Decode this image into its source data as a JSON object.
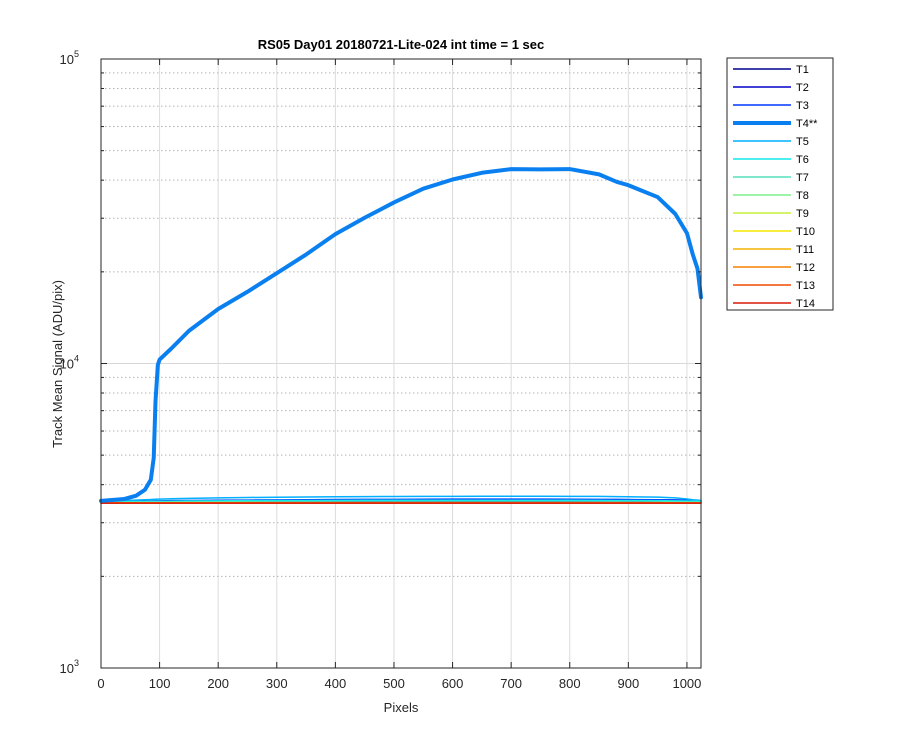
{
  "chart_data": {
    "type": "line",
    "title": "RS05 Day01 20180721-Lite-024 int time = 1 sec",
    "xlabel": "Pixels",
    "ylabel": "Track Mean Signal (ADU/pix)",
    "xlim": [
      0,
      1024
    ],
    "ylim": [
      1000,
      100000
    ],
    "yscale": "log",
    "grid": true,
    "legend_position": "outside-right",
    "x_ticks": [
      "0",
      "100",
      "200",
      "300",
      "400",
      "500",
      "600",
      "700",
      "800",
      "900",
      "1000"
    ],
    "y_ticks": [
      {
        "value": 1000,
        "base": "10",
        "exp": "3"
      },
      {
        "value": 10000,
        "base": "10",
        "exp": "4"
      },
      {
        "value": 100000,
        "base": "10",
        "exp": "5"
      }
    ],
    "x": [
      0,
      40,
      60,
      75,
      85,
      90,
      93,
      97,
      100,
      120,
      150,
      200,
      250,
      300,
      350,
      400,
      450,
      500,
      550,
      600,
      650,
      700,
      750,
      800,
      850,
      880,
      900,
      950,
      980,
      1000,
      1010,
      1018,
      1024
    ],
    "series": [
      {
        "name": "T1",
        "color": "#00008f",
        "width": 1.5,
        "values": [
          3500,
          3505,
          3510,
          3510,
          3510,
          3512,
          3512,
          3512,
          3512,
          3515,
          3515,
          3520,
          3520,
          3522,
          3522,
          3522,
          3525,
          3525,
          3525,
          3525,
          3525,
          3525,
          3525,
          3525,
          3522,
          3522,
          3520,
          3520,
          3520,
          3520,
          3518,
          3518,
          3515
        ]
      },
      {
        "name": "T2",
        "color": "#0000c8",
        "width": 1.5,
        "values": [
          3495,
          3500,
          3505,
          3505,
          3505,
          3505,
          3505,
          3505,
          3505,
          3508,
          3510,
          3512,
          3512,
          3515,
          3515,
          3515,
          3515,
          3515,
          3515,
          3515,
          3515,
          3515,
          3515,
          3515,
          3515,
          3512,
          3512,
          3510,
          3510,
          3510,
          3508,
          3508,
          3505
        ]
      },
      {
        "name": "T3",
        "color": "#0038ff",
        "width": 1.5,
        "values": [
          3520,
          3530,
          3535,
          3535,
          3538,
          3538,
          3540,
          3540,
          3540,
          3545,
          3548,
          3555,
          3560,
          3565,
          3570,
          3575,
          3578,
          3580,
          3582,
          3585,
          3585,
          3585,
          3585,
          3582,
          3580,
          3578,
          3575,
          3570,
          3565,
          3560,
          3555,
          3550,
          3545
        ]
      },
      {
        "name": "T4**",
        "color": "#0a80f0",
        "width": 4,
        "values": [
          3540,
          3590,
          3680,
          3850,
          4150,
          4900,
          7500,
          9900,
          10300,
          11200,
          12800,
          15100,
          17200,
          19800,
          22800,
          26600,
          30100,
          33800,
          37500,
          40200,
          42300,
          43500,
          43400,
          43500,
          41800,
          39500,
          38500,
          35200,
          31000,
          26800,
          22800,
          20500,
          16500
        ]
      },
      {
        "name": "T5",
        "color": "#00b0ff",
        "width": 1.5,
        "values": [
          3530,
          3545,
          3560,
          3570,
          3575,
          3580,
          3582,
          3585,
          3585,
          3595,
          3605,
          3620,
          3630,
          3638,
          3645,
          3650,
          3655,
          3658,
          3660,
          3662,
          3665,
          3665,
          3665,
          3662,
          3660,
          3655,
          3650,
          3640,
          3620,
          3590,
          3570,
          3560,
          3550
        ]
      },
      {
        "name": "T6",
        "color": "#10e8ec",
        "width": 1.5,
        "values": [
          3505,
          3515,
          3520,
          3522,
          3525,
          3525,
          3525,
          3525,
          3525,
          3530,
          3535,
          3540,
          3545,
          3548,
          3550,
          3552,
          3555,
          3555,
          3555,
          3555,
          3555,
          3555,
          3555,
          3555,
          3552,
          3550,
          3548,
          3545,
          3540,
          3535,
          3530,
          3528,
          3525
        ]
      },
      {
        "name": "T7",
        "color": "#55e0bc",
        "width": 1.5,
        "values": [
          3495,
          3500,
          3502,
          3502,
          3502,
          3502,
          3502,
          3502,
          3502,
          3505,
          3505,
          3508,
          3508,
          3510,
          3510,
          3510,
          3510,
          3510,
          3510,
          3510,
          3510,
          3510,
          3510,
          3510,
          3508,
          3508,
          3505,
          3505,
          3505,
          3505,
          3505,
          3505,
          3502
        ]
      },
      {
        "name": "T8",
        "color": "#7cf08a",
        "width": 1.5,
        "values": [
          3490,
          3495,
          3495,
          3495,
          3495,
          3495,
          3495,
          3495,
          3495,
          3498,
          3498,
          3500,
          3500,
          3500,
          3500,
          3500,
          3500,
          3500,
          3500,
          3500,
          3500,
          3500,
          3500,
          3500,
          3500,
          3500,
          3498,
          3498,
          3498,
          3498,
          3498,
          3498,
          3495
        ]
      },
      {
        "name": "T9",
        "color": "#c8f03a",
        "width": 1.5,
        "values": [
          3488,
          3490,
          3490,
          3490,
          3490,
          3490,
          3490,
          3490,
          3490,
          3492,
          3492,
          3492,
          3492,
          3492,
          3492,
          3492,
          3492,
          3492,
          3492,
          3492,
          3492,
          3492,
          3492,
          3492,
          3492,
          3492,
          3492,
          3492,
          3490,
          3490,
          3490,
          3490,
          3490
        ]
      },
      {
        "name": "T10",
        "color": "#f5e800",
        "width": 1.5,
        "values": [
          3486,
          3488,
          3488,
          3488,
          3488,
          3488,
          3488,
          3488,
          3488,
          3488,
          3488,
          3488,
          3488,
          3488,
          3488,
          3488,
          3488,
          3488,
          3488,
          3488,
          3488,
          3488,
          3488,
          3488,
          3488,
          3488,
          3488,
          3488,
          3488,
          3488,
          3488,
          3488,
          3488
        ]
      },
      {
        "name": "T11",
        "color": "#f4b400",
        "width": 1.5,
        "values": [
          3484,
          3486,
          3486,
          3486,
          3486,
          3486,
          3486,
          3486,
          3486,
          3486,
          3486,
          3486,
          3486,
          3486,
          3486,
          3486,
          3486,
          3486,
          3486,
          3486,
          3486,
          3486,
          3486,
          3486,
          3486,
          3486,
          3486,
          3486,
          3486,
          3486,
          3486,
          3486,
          3486
        ]
      },
      {
        "name": "T12",
        "color": "#f58000",
        "width": 1.5,
        "values": [
          3482,
          3484,
          3484,
          3484,
          3484,
          3484,
          3484,
          3484,
          3484,
          3484,
          3484,
          3484,
          3484,
          3484,
          3484,
          3484,
          3484,
          3484,
          3484,
          3484,
          3484,
          3484,
          3484,
          3484,
          3484,
          3484,
          3484,
          3484,
          3484,
          3484,
          3484,
          3484,
          3484
        ]
      },
      {
        "name": "T13",
        "color": "#f04c00",
        "width": 1.5,
        "values": [
          3480,
          3482,
          3482,
          3482,
          3482,
          3482,
          3482,
          3482,
          3482,
          3482,
          3482,
          3482,
          3482,
          3482,
          3482,
          3482,
          3482,
          3482,
          3482,
          3482,
          3482,
          3482,
          3482,
          3482,
          3482,
          3482,
          3482,
          3482,
          3482,
          3482,
          3482,
          3482,
          3482
        ]
      },
      {
        "name": "T14",
        "color": "#d81a0a",
        "width": 1.5,
        "values": [
          3478,
          3480,
          3480,
          3480,
          3480,
          3480,
          3480,
          3480,
          3480,
          3480,
          3480,
          3480,
          3480,
          3480,
          3480,
          3480,
          3480,
          3480,
          3480,
          3480,
          3480,
          3480,
          3480,
          3480,
          3480,
          3480,
          3480,
          3480,
          3480,
          3480,
          3480,
          3480,
          3480
        ]
      }
    ]
  }
}
